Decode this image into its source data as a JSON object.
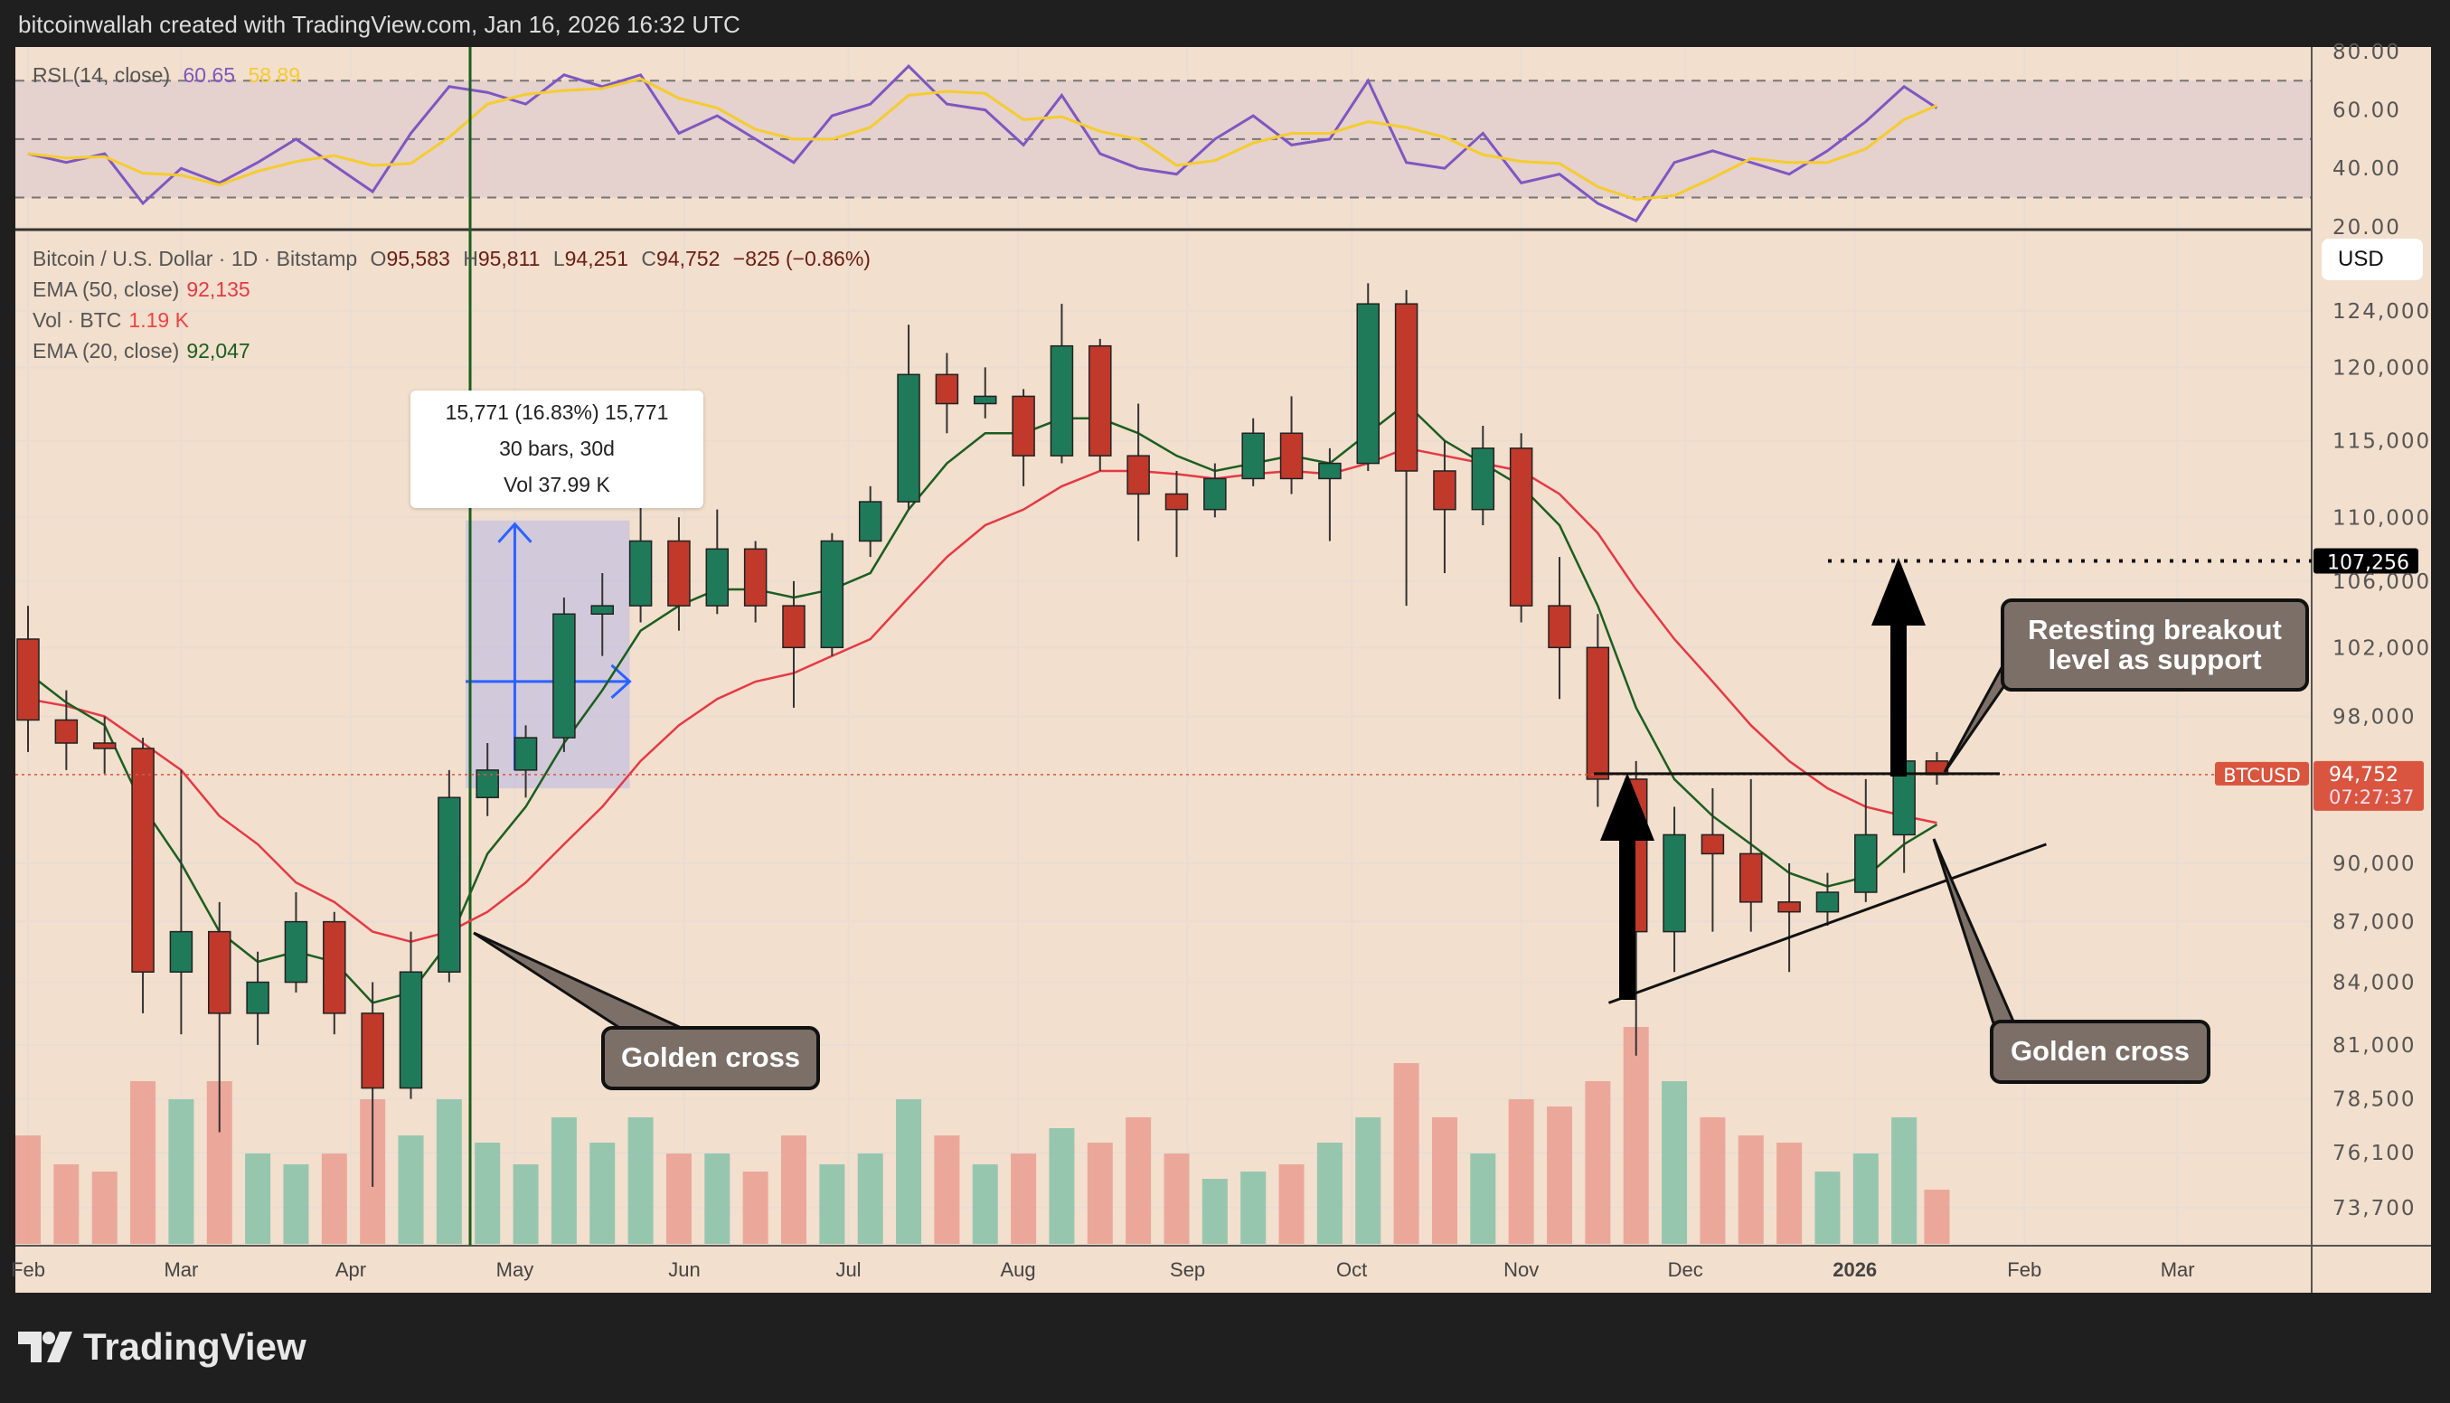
{
  "header": {
    "text": "bitcoinwallah created with TradingView.com, Jan 16, 2026 16:32 UTC"
  },
  "footer": {
    "logo_text": "TradingView"
  },
  "legend": {
    "rsi_label": "RSI (14, close)",
    "rsi_value": "60.65",
    "rsi_ma_value": "58.89",
    "symbol": "Bitcoin / U.S. Dollar · 1D · Bitstamp",
    "o_label": "O",
    "o": "95,583",
    "h_label": "H",
    "h": "95,811",
    "l_label": "L",
    "l": "94,251",
    "c_label": "C",
    "c": "94,752",
    "change": "−825 (−0.86%)",
    "ema50_label": "EMA (50, close)",
    "ema50": "92,135",
    "vol_label": "Vol · BTC",
    "vol": "1.19 K",
    "ema20_label": "EMA (20, close)",
    "ema20": "92,047"
  },
  "currency_button": "USD",
  "measure_tooltip": {
    "line1": "15,771 (16.83%) 15,771",
    "line2": "30 bars, 30d",
    "line3": "Vol 37.99 K"
  },
  "annotations": {
    "golden_cross_1": "Golden cross",
    "golden_cross_2": "Golden cross",
    "retest": "Retesting breakout level as support"
  },
  "colors": {
    "up": "#1f7a5a",
    "down": "#c0392b",
    "ema20": "#1b5e20",
    "ema50": "#e53945",
    "rsi": "#7e57c2",
    "rsi_ma": "#f5cc2e",
    "background": "#f2dfcd",
    "last_price": "#d9553f"
  },
  "chart_data": {
    "type": "candlestick",
    "scale": "log",
    "ylim": [
      72000,
      128000
    ],
    "y_ticks": [
      "124,000",
      "120,000",
      "115,000",
      "110,000",
      "106,000",
      "102,000",
      "98,000",
      "90,000",
      "87,000",
      "84,000",
      "81,000",
      "78,500",
      "76,100",
      "73,700"
    ],
    "y_tick_values": [
      124000,
      120000,
      115000,
      110000,
      106000,
      102000,
      98000,
      90000,
      87000,
      84000,
      81000,
      78500,
      76100,
      73700
    ],
    "rsi_ticks": [
      "80.00",
      "60.00",
      "40.00",
      "20.00"
    ],
    "rsi_tick_values": [
      80,
      60,
      40,
      20
    ],
    "rsi_bands": [
      70,
      50,
      30
    ],
    "x_ticks": [
      {
        "label": "Feb",
        "date": "2025-02-01"
      },
      {
        "label": "Mar",
        "date": "2025-03-01"
      },
      {
        "label": "Apr",
        "date": "2025-04-01"
      },
      {
        "label": "May",
        "date": "2025-05-01"
      },
      {
        "label": "Jun",
        "date": "2025-06-01"
      },
      {
        "label": "Jul",
        "date": "2025-07-01"
      },
      {
        "label": "Aug",
        "date": "2025-08-01"
      },
      {
        "label": "Sep",
        "date": "2025-09-01"
      },
      {
        "label": "Oct",
        "date": "2025-10-01"
      },
      {
        "label": "Nov",
        "date": "2025-11-01"
      },
      {
        "label": "Dec",
        "date": "2025-12-01"
      },
      {
        "label": "2026",
        "date": "2026-01-01"
      },
      {
        "label": "Feb",
        "date": "2026-02-01"
      },
      {
        "label": "Mar",
        "date": "2026-03-01"
      }
    ],
    "fields": [
      "date",
      "open",
      "high",
      "low",
      "close",
      "ema20",
      "ema50",
      "volume_k",
      "rsi"
    ],
    "candles": [
      [
        "2025-02-01",
        102500,
        104500,
        96000,
        97800,
        100500,
        99000,
        30,
        45
      ],
      [
        "2025-02-08",
        97800,
        99500,
        95000,
        96500,
        98800,
        98600,
        22,
        42
      ],
      [
        "2025-02-15",
        96500,
        98000,
        94800,
        96200,
        97500,
        98000,
        20,
        45
      ],
      [
        "2025-02-22",
        96200,
        96800,
        82500,
        84500,
        93000,
        96500,
        45,
        28
      ],
      [
        "2025-03-01",
        84500,
        95000,
        81500,
        86500,
        90000,
        95000,
        40,
        40
      ],
      [
        "2025-03-08",
        86500,
        88000,
        77000,
        82500,
        86500,
        92500,
        45,
        35
      ],
      [
        "2025-03-15",
        82500,
        85500,
        81000,
        84000,
        85000,
        91000,
        25,
        42
      ],
      [
        "2025-03-22",
        84000,
        88500,
        83500,
        87000,
        85500,
        89000,
        22,
        50
      ],
      [
        "2025-03-29",
        87000,
        87500,
        81500,
        82500,
        85000,
        88000,
        25,
        41
      ],
      [
        "2025-04-05",
        82500,
        84000,
        74600,
        79000,
        83000,
        86500,
        40,
        32
      ],
      [
        "2025-04-12",
        79000,
        86500,
        78500,
        84500,
        83500,
        86000,
        30,
        52
      ],
      [
        "2025-04-19",
        84500,
        95000,
        84000,
        93500,
        86000,
        86500,
        40,
        68
      ],
      [
        "2025-04-26",
        93500,
        96500,
        92500,
        95000,
        90500,
        87500,
        28,
        66
      ],
      [
        "2025-05-03",
        95000,
        97500,
        93500,
        96800,
        93000,
        89000,
        22,
        62
      ],
      [
        "2025-05-10",
        96800,
        105000,
        96000,
        104000,
        96500,
        91000,
        35,
        72
      ],
      [
        "2025-05-17",
        104000,
        106500,
        101500,
        104500,
        99500,
        93000,
        28,
        68
      ],
      [
        "2025-05-24",
        104500,
        112000,
        103500,
        108500,
        103000,
        95500,
        35,
        72
      ],
      [
        "2025-05-31",
        108500,
        110000,
        103000,
        104500,
        104500,
        97500,
        25,
        52
      ],
      [
        "2025-06-07",
        104500,
        110500,
        104000,
        108000,
        105500,
        99000,
        25,
        58
      ],
      [
        "2025-06-14",
        108000,
        108500,
        103500,
        104500,
        105500,
        100000,
        20,
        50
      ],
      [
        "2025-06-21",
        104500,
        106000,
        98500,
        102000,
        105000,
        100500,
        30,
        42
      ],
      [
        "2025-06-28",
        102000,
        109000,
        101500,
        108500,
        105500,
        101500,
        22,
        58
      ],
      [
        "2025-07-05",
        108500,
        112000,
        107500,
        111000,
        106500,
        102500,
        25,
        62
      ],
      [
        "2025-07-12",
        111000,
        123000,
        110500,
        119500,
        110500,
        105000,
        40,
        75
      ],
      [
        "2025-07-19",
        119500,
        121000,
        115500,
        117500,
        113500,
        107500,
        30,
        62
      ],
      [
        "2025-07-26",
        117500,
        120000,
        116500,
        118000,
        115500,
        109500,
        22,
        60
      ],
      [
        "2025-08-02",
        118000,
        118500,
        112000,
        114000,
        115500,
        110500,
        25,
        48
      ],
      [
        "2025-08-09",
        114000,
        124500,
        113500,
        121500,
        116500,
        112000,
        32,
        65
      ],
      [
        "2025-08-16",
        121500,
        122000,
        113000,
        114000,
        116500,
        113000,
        28,
        45
      ],
      [
        "2025-08-23",
        114000,
        117500,
        108500,
        111500,
        115500,
        113000,
        35,
        40
      ],
      [
        "2025-08-30",
        111500,
        113000,
        107500,
        110500,
        114000,
        112800,
        25,
        38
      ],
      [
        "2025-09-06",
        110500,
        113500,
        110000,
        112500,
        113000,
        112500,
        18,
        50
      ],
      [
        "2025-09-13",
        112500,
        116500,
        112000,
        115500,
        113500,
        112800,
        20,
        58
      ],
      [
        "2025-09-20",
        115500,
        118000,
        111500,
        112500,
        114000,
        113000,
        22,
        48
      ],
      [
        "2025-09-27",
        112500,
        114500,
        108500,
        113500,
        113500,
        112800,
        28,
        50
      ],
      [
        "2025-10-04",
        113500,
        126000,
        113000,
        124500,
        115500,
        113500,
        35,
        70
      ],
      [
        "2025-10-11",
        124500,
        125500,
        104500,
        113000,
        117500,
        114500,
        50,
        42
      ],
      [
        "2025-10-18",
        113000,
        115000,
        106500,
        110500,
        115000,
        114000,
        35,
        40
      ],
      [
        "2025-10-25",
        110500,
        116000,
        109500,
        114500,
        113500,
        113500,
        25,
        52
      ],
      [
        "2025-11-01",
        114500,
        115500,
        103500,
        104500,
        112000,
        113000,
        40,
        35
      ],
      [
        "2025-11-08",
        104500,
        107500,
        99000,
        102000,
        109500,
        111500,
        38,
        38
      ],
      [
        "2025-11-15",
        102000,
        104000,
        93000,
        94500,
        104500,
        109000,
        45,
        28
      ],
      [
        "2025-11-22",
        94500,
        95500,
        80500,
        86500,
        98500,
        105500,
        60,
        22
      ],
      [
        "2025-11-29",
        86500,
        93000,
        84500,
        91500,
        94500,
        102500,
        45,
        42
      ],
      [
        "2025-12-06",
        91500,
        94000,
        86500,
        90500,
        92500,
        100000,
        35,
        46
      ],
      [
        "2025-12-13",
        90500,
        94500,
        86500,
        88000,
        91000,
        97500,
        30,
        42
      ],
      [
        "2025-12-20",
        88000,
        90000,
        84500,
        87500,
        89500,
        95500,
        28,
        38
      ],
      [
        "2025-12-27",
        87500,
        89500,
        86800,
        88500,
        88800,
        94000,
        20,
        46
      ],
      [
        "2026-01-03",
        88500,
        94500,
        88000,
        91500,
        89300,
        93000,
        25,
        56
      ],
      [
        "2026-01-10",
        91500,
        97500,
        89500,
        95500,
        91000,
        92500,
        35,
        68
      ],
      [
        "2026-01-16",
        95500,
        96000,
        94200,
        94752,
        92047,
        92135,
        15,
        60.65
      ]
    ],
    "last_price": {
      "symbol": "BTCUSD",
      "value": "94,752",
      "countdown": "07:27:37",
      "price": 94752
    },
    "target": {
      "value": "107,256",
      "price": 107256
    },
    "breakout_level": 94800,
    "trendline": [
      {
        "date": "2025-11-17",
        "price": 83000
      },
      {
        "date": "2026-02-05",
        "price": 91000
      }
    ],
    "measure": {
      "from_date": "2025-04-22",
      "to_date": "2025-05-22",
      "low": 94000,
      "high": 109800
    }
  }
}
